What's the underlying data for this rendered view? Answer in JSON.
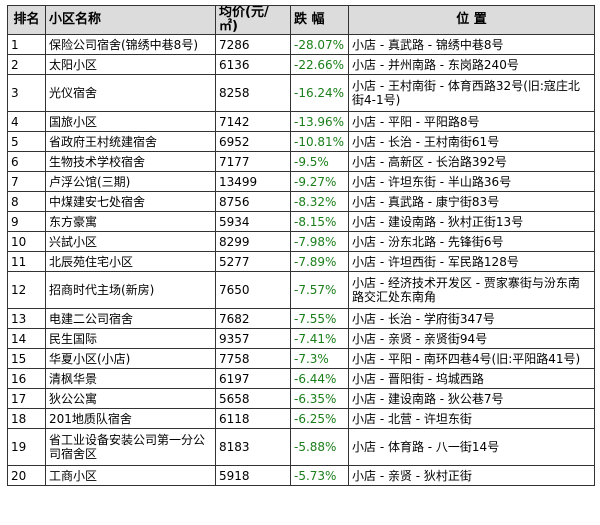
{
  "headers": {
    "rank": "排名",
    "name": "小区名称",
    "price": "均价(元/㎡)",
    "drop": "跌 幅",
    "location": "位 置"
  },
  "rows": [
    {
      "rank": "1",
      "name": "保险公司宿舍(锦绣中巷8号)",
      "price": "7286",
      "drop": "-28.07%",
      "location": "小店 - 真武路 - 锦绣中巷8号"
    },
    {
      "rank": "2",
      "name": "太阳小区",
      "price": "6136",
      "drop": "-22.66%",
      "location": "小店 - 并州南路 - 东岗路240号"
    },
    {
      "rank": "3",
      "name": "光仪宿舍",
      "price": "8258",
      "drop": "-16.24%",
      "location": "小店 - 王村南街 - 体育西路32号(旧:寇庄北街4-1号)"
    },
    {
      "rank": "4",
      "name": "国旅小区",
      "price": "7142",
      "drop": "-13.96%",
      "location": "小店 - 平阳 - 平阳路8号"
    },
    {
      "rank": "5",
      "name": "省政府王村统建宿舍",
      "price": "6952",
      "drop": "-10.81%",
      "location": "小店 - 长治 - 王村南街61号"
    },
    {
      "rank": "6",
      "name": "生物技术学校宿舍",
      "price": "7177",
      "drop": "-9.5%",
      "location": "小店 - 高新区 - 长治路392号"
    },
    {
      "rank": "7",
      "name": "卢浮公馆(三期)",
      "price": "13499",
      "drop": "-9.27%",
      "location": "小店 - 许坦东街 - 半山路36号"
    },
    {
      "rank": "8",
      "name": "中煤建安七处宿舍",
      "price": "8756",
      "drop": "-8.32%",
      "location": "小店 - 真武路 - 康宁街83号"
    },
    {
      "rank": "9",
      "name": "东方豪寓",
      "price": "5934",
      "drop": "-8.15%",
      "location": "小店 - 建设南路 - 狄村正街13号"
    },
    {
      "rank": "10",
      "name": "兴試小区",
      "price": "8299",
      "drop": "-7.98%",
      "location": "小店 - 汾东北路 - 先锋街6号"
    },
    {
      "rank": "11",
      "name": "北辰苑住宅小区",
      "price": "5277",
      "drop": "-7.89%",
      "location": "小店 - 许坦西街 - 军民路128号"
    },
    {
      "rank": "12",
      "name": "招商时代主场(新房)",
      "price": "7650",
      "drop": "-7.57%",
      "location": "小店 - 经济技术开发区 - 贾家寨街与汾东南路交汇处东南角"
    },
    {
      "rank": "13",
      "name": "电建二公司宿舍",
      "price": "7682",
      "drop": "-7.55%",
      "location": "小店 - 长治 - 学府街347号"
    },
    {
      "rank": "14",
      "name": "民生国际",
      "price": "9357",
      "drop": "-7.41%",
      "location": "小店 - 亲贤 - 亲贤街94号"
    },
    {
      "rank": "15",
      "name": "华夏小区(小店)",
      "price": "7758",
      "drop": "-7.3%",
      "location": "小店 - 平阳 - 南环四巷4号(旧:平阳路41号)"
    },
    {
      "rank": "16",
      "name": "清枫华景",
      "price": "6197",
      "drop": "-6.44%",
      "location": "小店 - 晋阳街 - 坞城西路"
    },
    {
      "rank": "17",
      "name": "狄公公寓",
      "price": "5658",
      "drop": "-6.35%",
      "location": "小店 - 建设南路 - 狄公巷7号"
    },
    {
      "rank": "18",
      "name": "201地质队宿舍",
      "price": "6118",
      "drop": "-6.25%",
      "location": "小店 - 北营 - 许坦东街"
    },
    {
      "rank": "19",
      "name": "省工业设备安装公司第一分公司宿舍区",
      "price": "8183",
      "drop": "-5.88%",
      "location": "小店 - 体育路 - 八一街14号"
    },
    {
      "rank": "20",
      "name": "工商小区",
      "price": "5918",
      "drop": "-5.73%",
      "location": "小店 - 亲贤 - 狄村正街"
    }
  ],
  "colors": {
    "header_bg": "#dcdcdc",
    "drop_text": "#1a7f1a",
    "border": "#333333"
  }
}
